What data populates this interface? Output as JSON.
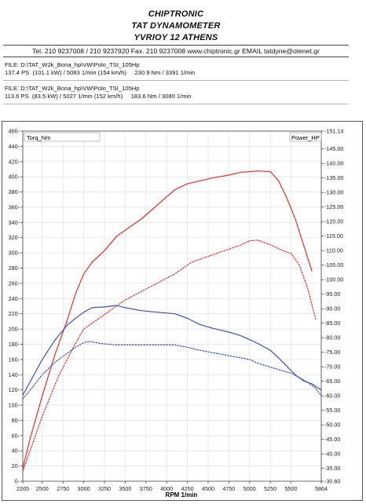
{
  "header": {
    "company": "CHIPTRONIC",
    "product": "TAT DYNAMOMETER",
    "address": "YVRIOY 12 ATHENS",
    "contact": "Tel. 210 9237008 / 210 9237920   Fax. 210 9237008 www.chiptronic.gr EMAIL tatdyne@otenet.gr"
  },
  "files": [
    {
      "name": "FILE: D:\\TAT_W2k_Bona_hp\\VW\\Polo_TSI_105Hp",
      "result": "137.4 PS  (101.1 kW) / 5083 1/min (154 km/h)     230.9 Nm / 3391 1/min"
    },
    {
      "name": "FILE: D:\\TAT_W2k_Bona_hp\\VW\\Polo_TSI_105Hp",
      "result": "113.6 PS  (83.5 kW) / 5027 1/min (152 km/h)     183.6 Nm / 3080 1/min"
    }
  ],
  "chart_data": {
    "type": "line",
    "xlabel": "RPM   1/min",
    "legend_left": "Torq_Nm",
    "legend_right": "Power_HP",
    "x_ticks": [
      "2265",
      "2500",
      "2750",
      "3000",
      "3250",
      "3500",
      "3750",
      "4000",
      "4250",
      "4500",
      "4750",
      "5000",
      "5250",
      "5500",
      "5864"
    ],
    "x_range": [
      2265,
      5864
    ],
    "y_left_ticks": [
      "0",
      "20",
      "40",
      "60",
      "80",
      "100",
      "120",
      "140",
      "160",
      "180",
      "200",
      "220",
      "240",
      "260",
      "280",
      "300",
      "320",
      "340",
      "360",
      "380",
      "400",
      "420",
      "440",
      "460"
    ],
    "y_left_range": [
      0,
      460
    ],
    "y_right_ticks": [
      "-30.60",
      "-35.00",
      "-40.00",
      "-45.00",
      "-50.00",
      "-55.00",
      "-60.00",
      "-65.00",
      "-70.00",
      "-75.00",
      "-80.00",
      "-85.00",
      "-90.00",
      "-95.00",
      "-100.00",
      "-105.00",
      "-110.00",
      "-115.00",
      "-120.00",
      "-125.00",
      "-130.00",
      "-135.00",
      "-140.00",
      "-145.00",
      "-151.14"
    ],
    "y_right_range": [
      30.6,
      151.14
    ],
    "series": [
      {
        "axis": "right",
        "color": "#e03030",
        "style": "solid",
        "x": [
          2265,
          2350,
          2500,
          2650,
          2800,
          2900,
          3000,
          3100,
          3250,
          3400,
          3500,
          3700,
          3900,
          4100,
          4250,
          4400,
          4550,
          4750,
          4900,
          5000,
          5100,
          5250,
          5350,
          5450,
          5550,
          5650,
          5750
        ],
        "y": [
          35,
          45,
          60,
          74,
          86,
          95,
          102,
          106,
          110,
          115,
          117,
          121,
          126,
          131,
          133,
          134,
          135,
          136,
          137,
          137.2,
          137.4,
          137.2,
          134,
          128,
          121,
          112,
          103
        ]
      },
      {
        "axis": "right",
        "color": "#e03030",
        "style": "dotted",
        "x": [
          2265,
          2400,
          2500,
          2700,
          2900,
          3000,
          3100,
          3250,
          3400,
          3500,
          3700,
          3900,
          4100,
          4300,
          4500,
          4700,
          4900,
          5000,
          5100,
          5250,
          5400,
          5500,
          5600,
          5700,
          5800
        ],
        "y": [
          34,
          45,
          53,
          67,
          78,
          83,
          85,
          88,
          91,
          93,
          96,
          99,
          102,
          106,
          108,
          110,
          112,
          113.4,
          113.6,
          112,
          110,
          109,
          105,
          97,
          86
        ]
      },
      {
        "axis": "left",
        "color": "#3c52b4",
        "style": "solid",
        "x": [
          2265,
          2350,
          2500,
          2650,
          2800,
          2900,
          3000,
          3100,
          3250,
          3391,
          3500,
          3700,
          3900,
          4100,
          4250,
          4400,
          4550,
          4750,
          4900,
          5000,
          5100,
          5250,
          5350,
          5450,
          5550,
          5650,
          5750,
          5864
        ],
        "y": [
          113,
          130,
          160,
          185,
          205,
          214,
          222,
          228,
          229,
          230.9,
          228,
          224,
          222,
          220,
          214,
          206,
          201,
          196,
          191,
          186,
          181,
          172,
          162,
          151,
          140,
          132,
          128,
          120
        ]
      },
      {
        "axis": "left",
        "color": "#3c52b4",
        "style": "dotted",
        "x": [
          2265,
          2400,
          2500,
          2650,
          2800,
          2900,
          3000,
          3080,
          3200,
          3400,
          3500,
          3700,
          3900,
          4100,
          4250,
          4400,
          4600,
          4800,
          5000,
          5100,
          5250,
          5400,
          5500,
          5600,
          5700,
          5800,
          5864
        ],
        "y": [
          108,
          126,
          140,
          156,
          168,
          176,
          182,
          183.6,
          181,
          179,
          179,
          179,
          179,
          179,
          176,
          172,
          168,
          164,
          160,
          155,
          150,
          145,
          142,
          136,
          130,
          122,
          112
        ]
      }
    ]
  }
}
